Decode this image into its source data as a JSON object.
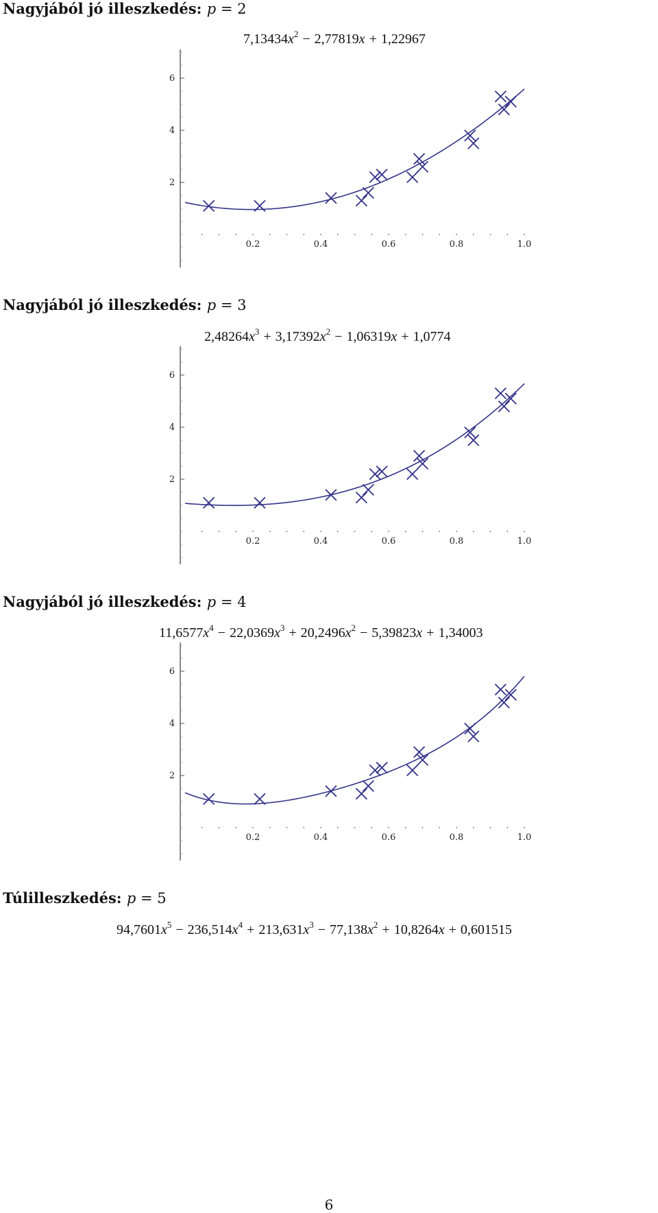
{
  "sections": [
    {
      "heading": "Nagyjából jó illeszkedés:",
      "param": "p",
      "eq": "=",
      "value": "2",
      "formula": [
        {
          "type": "num",
          "t": "7,13434"
        },
        {
          "type": "var",
          "t": "x"
        },
        {
          "type": "sup",
          "t": "2"
        },
        {
          "type": "op",
          "t": "−"
        },
        {
          "type": "num",
          "t": "2,77819"
        },
        {
          "type": "var",
          "t": "x"
        },
        {
          "type": "op",
          "t": "+"
        },
        {
          "type": "num",
          "t": "1,22967"
        }
      ]
    },
    {
      "heading": "Nagyjából jó illeszkedés:",
      "param": "p",
      "eq": "=",
      "value": "3",
      "formula": [
        {
          "type": "num",
          "t": "2,48264"
        },
        {
          "type": "var",
          "t": "x"
        },
        {
          "type": "sup",
          "t": "3"
        },
        {
          "type": "op",
          "t": "+"
        },
        {
          "type": "num",
          "t": "3,17392"
        },
        {
          "type": "var",
          "t": "x"
        },
        {
          "type": "sup",
          "t": "2"
        },
        {
          "type": "op",
          "t": "−"
        },
        {
          "type": "num",
          "t": "1,06319"
        },
        {
          "type": "var",
          "t": "x"
        },
        {
          "type": "op",
          "t": "+"
        },
        {
          "type": "num",
          "t": "1,0774"
        }
      ]
    },
    {
      "heading": "Nagyjából jó illeszkedés:",
      "param": "p",
      "eq": "=",
      "value": "4",
      "formula": [
        {
          "type": "num",
          "t": "11,6577"
        },
        {
          "type": "var",
          "t": "x"
        },
        {
          "type": "sup",
          "t": "4"
        },
        {
          "type": "op",
          "t": "−"
        },
        {
          "type": "num",
          "t": "22,0369"
        },
        {
          "type": "var",
          "t": "x"
        },
        {
          "type": "sup",
          "t": "3"
        },
        {
          "type": "op",
          "t": "+"
        },
        {
          "type": "num",
          "t": "20,2496"
        },
        {
          "type": "var",
          "t": "x"
        },
        {
          "type": "sup",
          "t": "2"
        },
        {
          "type": "op",
          "t": "−"
        },
        {
          "type": "num",
          "t": "5,39823"
        },
        {
          "type": "var",
          "t": "x"
        },
        {
          "type": "op",
          "t": "+"
        },
        {
          "type": "num",
          "t": "1,34003"
        }
      ]
    },
    {
      "heading": "Túlilleszkedés:",
      "param": "p",
      "eq": "=",
      "value": "5",
      "formula": [
        {
          "type": "num",
          "t": "94,7601"
        },
        {
          "type": "var",
          "t": "x"
        },
        {
          "type": "sup",
          "t": "5"
        },
        {
          "type": "op",
          "t": "−"
        },
        {
          "type": "num",
          "t": "236,514"
        },
        {
          "type": "var",
          "t": "x"
        },
        {
          "type": "sup",
          "t": "4"
        },
        {
          "type": "op",
          "t": "+"
        },
        {
          "type": "num",
          "t": "213,631"
        },
        {
          "type": "var",
          "t": "x"
        },
        {
          "type": "sup",
          "t": "3"
        },
        {
          "type": "op",
          "t": "−"
        },
        {
          "type": "num",
          "t": "77,138"
        },
        {
          "type": "var",
          "t": "x"
        },
        {
          "type": "sup",
          "t": "2"
        },
        {
          "type": "op",
          "t": "+"
        },
        {
          "type": "num",
          "t": "10,8264"
        },
        {
          "type": "var",
          "t": "x"
        },
        {
          "type": "op",
          "t": "+"
        },
        {
          "type": "num",
          "t": "0,601515"
        }
      ]
    }
  ],
  "page_number": "6",
  "chart_data": [
    {
      "type": "scatter",
      "title": "",
      "xlabel": "",
      "ylabel": "",
      "xlim": [
        0,
        1.0
      ],
      "ylim": [
        -1,
        7
      ],
      "x_ticks": [
        "0.2",
        "0.4",
        "0.6",
        "0.8",
        "1.0"
      ],
      "y_ticks": [
        "2",
        "4",
        "6"
      ],
      "color": "#33338a",
      "points": {
        "x": [
          0.07,
          0.22,
          0.43,
          0.52,
          0.54,
          0.56,
          0.58,
          0.67,
          0.69,
          0.7,
          0.84,
          0.85,
          0.93,
          0.94,
          0.96
        ],
        "y": [
          1.1,
          1.1,
          1.4,
          1.3,
          1.6,
          2.2,
          2.3,
          2.2,
          2.9,
          2.6,
          3.8,
          3.5,
          5.3,
          4.8,
          5.1
        ]
      },
      "fit": {
        "degree": 2,
        "coeffs": [
          1.22967,
          -2.77819,
          7.13434
        ]
      }
    },
    {
      "type": "scatter",
      "title": "",
      "xlabel": "",
      "ylabel": "",
      "xlim": [
        0,
        1.0
      ],
      "ylim": [
        -1,
        7
      ],
      "x_ticks": [
        "0.2",
        "0.4",
        "0.6",
        "0.8",
        "1.0"
      ],
      "y_ticks": [
        "2",
        "4",
        "6"
      ],
      "color": "#33338a",
      "points": {
        "x": [
          0.07,
          0.22,
          0.43,
          0.52,
          0.54,
          0.56,
          0.58,
          0.67,
          0.69,
          0.7,
          0.84,
          0.85,
          0.93,
          0.94,
          0.96
        ],
        "y": [
          1.1,
          1.1,
          1.4,
          1.3,
          1.6,
          2.2,
          2.3,
          2.2,
          2.9,
          2.6,
          3.8,
          3.5,
          5.3,
          4.8,
          5.1
        ]
      },
      "fit": {
        "degree": 3,
        "coeffs": [
          1.0774,
          -1.06319,
          3.17392,
          2.48264
        ]
      }
    },
    {
      "type": "scatter",
      "title": "",
      "xlabel": "",
      "ylabel": "",
      "xlim": [
        0,
        1.0
      ],
      "ylim": [
        -1,
        7
      ],
      "x_ticks": [
        "0.2",
        "0.4",
        "0.6",
        "0.8",
        "1.0"
      ],
      "y_ticks": [
        "2",
        "4",
        "6"
      ],
      "color": "#33338a",
      "points": {
        "x": [
          0.07,
          0.22,
          0.43,
          0.52,
          0.54,
          0.56,
          0.58,
          0.67,
          0.69,
          0.7,
          0.84,
          0.85,
          0.93,
          0.94,
          0.96
        ],
        "y": [
          1.1,
          1.1,
          1.4,
          1.3,
          1.6,
          2.2,
          2.3,
          2.2,
          2.9,
          2.6,
          3.8,
          3.5,
          5.3,
          4.8,
          5.1
        ]
      },
      "fit": {
        "degree": 4,
        "coeffs": [
          1.34003,
          -5.39823,
          20.2496,
          -22.0369,
          11.6577
        ]
      }
    }
  ]
}
